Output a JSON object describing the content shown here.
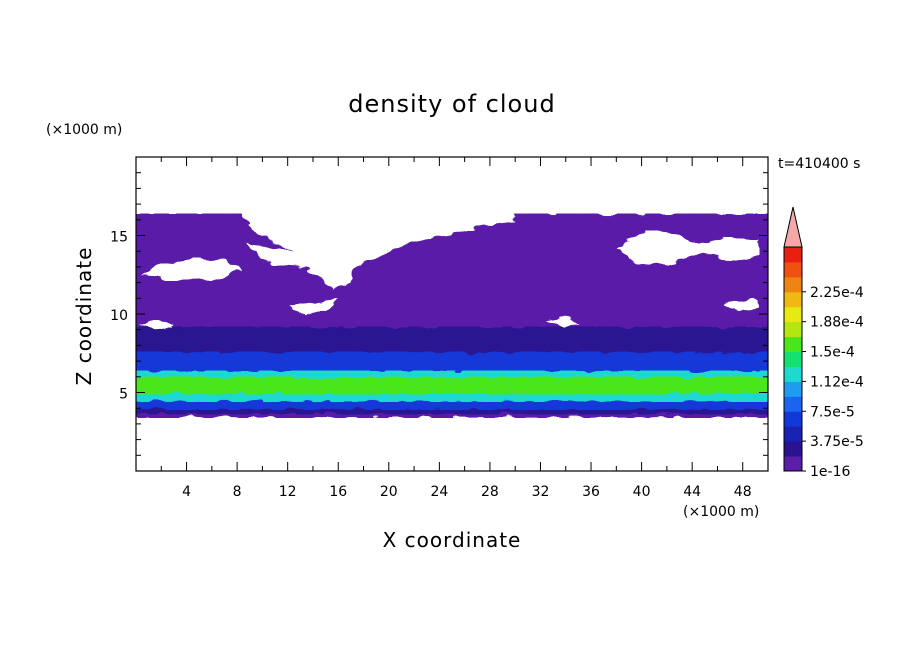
{
  "chart_data": {
    "type": "heatmap",
    "title": "density of cloud",
    "xlabel": "X coordinate",
    "ylabel": "Z coordinate",
    "x_unit": "(×1000 m)",
    "y_unit": "(×1000 m)",
    "time_label": "t=410400 s",
    "xlim": [
      0,
      50
    ],
    "ylim": [
      0,
      20
    ],
    "x_ticks": [
      4,
      8,
      12,
      16,
      20,
      24,
      28,
      32,
      36,
      40,
      44,
      48
    ],
    "y_ticks": [
      5,
      10,
      15
    ],
    "colorbar": {
      "labels": [
        "1e-16",
        "3.75e-5",
        "7.5e-5",
        "1.12e-4",
        "1.5e-4",
        "1.88e-4",
        "2.25e-4"
      ],
      "colors": [
        "#5a1ea8",
        "#2a1290",
        "#1a22b4",
        "#1238d8",
        "#1a64f0",
        "#1f9cf0",
        "#1fd8d0",
        "#12e070",
        "#4ae61c",
        "#b4e612",
        "#e8e812",
        "#f0b812",
        "#f08412",
        "#f05012",
        "#e82012"
      ],
      "extend_color": "#f4a8a8"
    },
    "layers": [
      {
        "level": "1e-16",
        "color": "#5a1ea8",
        "z_bottom": 3.4,
        "z_top": 16.4
      },
      {
        "level": "3.75e-5",
        "color": "#2a1290",
        "z_bottom": 3.6,
        "z_top": 9.2
      },
      {
        "level": "7.5e-5",
        "color": "#1238d8",
        "z_bottom": 3.9,
        "z_top": 7.6
      },
      {
        "level": "1.12e-4",
        "color": "#1fd8d0",
        "z_bottom": 4.4,
        "z_top": 6.4
      },
      {
        "level": "1.5e-4",
        "color": "#4ae61c",
        "z_bottom": 4.9,
        "z_top": 6.0
      }
    ]
  }
}
